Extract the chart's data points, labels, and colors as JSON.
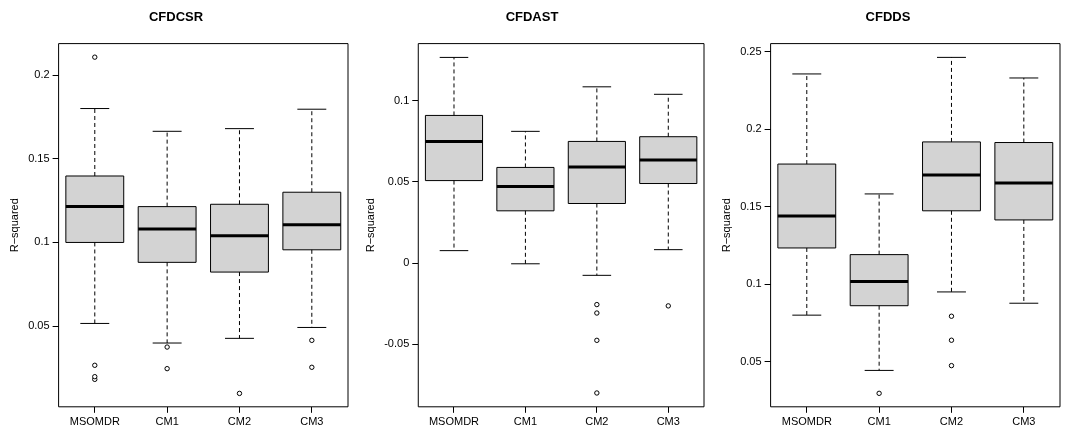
{
  "chart_data": [
    {
      "type": "box",
      "title": "CFDCSR",
      "ylabel": "R−squared",
      "categories": [
        "MSOMDR",
        "CM1",
        "CM2",
        "CM3"
      ],
      "ylim": [
        0.0018,
        0.2188
      ],
      "yticks": [
        0.05,
        0.1,
        0.15,
        0.2
      ],
      "series": [
        {
          "color": "#d3d3d3",
          "boxes": [
            {
              "low": 0.0516,
              "q1": 0.1,
              "median": 0.1214,
              "q3": 0.1397,
              "high": 0.18,
              "outliers": [
                0.2107,
                0.0266,
                0.0198,
                0.0182
              ]
            },
            {
              "low": 0.0399,
              "q1": 0.0881,
              "median": 0.1081,
              "q3": 0.1214,
              "high": 0.1664,
              "outliers": [
                0.0375,
                0.0246
              ]
            },
            {
              "low": 0.0427,
              "q1": 0.0823,
              "median": 0.104,
              "q3": 0.1228,
              "high": 0.168,
              "outliers": [
                0.0098
              ]
            },
            {
              "low": 0.0492,
              "q1": 0.0956,
              "median": 0.1105,
              "q3": 0.13,
              "high": 0.1796,
              "outliers": [
                0.0415,
                0.0254
              ]
            }
          ]
        }
      ]
    },
    {
      "type": "box",
      "title": "CFDAST",
      "ylabel": "R−squared",
      "categories": [
        "MSOMDR",
        "CM1",
        "CM2",
        "CM3"
      ],
      "ylim": [
        -0.0884,
        0.1351
      ],
      "yticks": [
        -0.05,
        0,
        0.05,
        0.1
      ],
      "series": [
        {
          "color": "#d3d3d3",
          "boxes": [
            {
              "low": 0.0077,
              "q1": 0.0508,
              "median": 0.0749,
              "q3": 0.0909,
              "high": 0.1266
            },
            {
              "low": -0.0004,
              "q1": 0.0322,
              "median": 0.0471,
              "q3": 0.0589,
              "high": 0.0811
            },
            {
              "low": -0.0075,
              "q1": 0.0367,
              "median": 0.0591,
              "q3": 0.0749,
              "high": 0.1085,
              "outliers": [
                -0.0255,
                -0.0307,
                -0.0475,
                -0.0799
              ]
            },
            {
              "low": 0.0083,
              "q1": 0.049,
              "median": 0.0635,
              "q3": 0.0778,
              "high": 0.1039,
              "outliers": [
                -0.0263
              ]
            }
          ]
        }
      ]
    },
    {
      "type": "box",
      "title": "CFDDS",
      "ylabel": "R−squared",
      "categories": [
        "MSOMDR",
        "CM1",
        "CM2",
        "CM3"
      ],
      "ylim": [
        0.0208,
        0.2554
      ],
      "yticks": [
        0.05,
        0.1,
        0.15,
        0.2,
        0.25
      ],
      "series": [
        {
          "color": "#d3d3d3",
          "boxes": [
            {
              "low": 0.08,
              "q1": 0.1234,
              "median": 0.1441,
              "q3": 0.1776,
              "high": 0.2358
            },
            {
              "low": 0.0443,
              "q1": 0.0861,
              "median": 0.1017,
              "q3": 0.1191,
              "high": 0.1583,
              "outliers": [
                0.0295
              ]
            },
            {
              "low": 0.095,
              "q1": 0.1474,
              "median": 0.1705,
              "q3": 0.1919,
              "high": 0.2465,
              "outliers": [
                0.0793,
                0.0638,
                0.0474
              ]
            },
            {
              "low": 0.0877,
              "q1": 0.1415,
              "median": 0.1654,
              "q3": 0.1915,
              "high": 0.2332
            }
          ]
        }
      ]
    }
  ]
}
